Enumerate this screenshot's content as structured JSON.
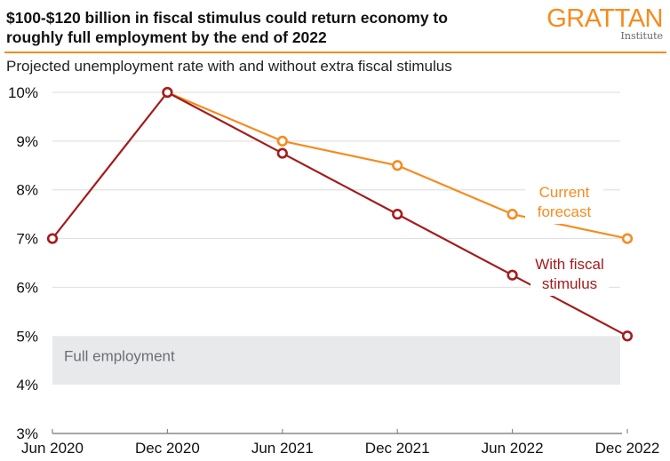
{
  "header": {
    "title_line1": "$100-$120 billion in fiscal stimulus could return economy to",
    "title_line2": "roughly full employment by the end of 2022",
    "subtitle": "Projected unemployment rate with and without extra fiscal stimulus",
    "logo_main": "GRATTAN",
    "logo_sub": "Institute"
  },
  "colors": {
    "accent": "#f68b1f",
    "current_forecast": "#f68b1f",
    "with_stimulus": "#a31c1c",
    "band": "#e8e9ea",
    "grid": "#e2e2e2",
    "band_label": "#6b6f75"
  },
  "chart_data": {
    "type": "line",
    "title": "$100-$120 billion in fiscal stimulus could return economy to roughly full employment by the end of 2022",
    "subtitle": "Projected unemployment rate with and without extra fiscal stimulus",
    "xlabel": "",
    "ylabel": "",
    "categories": [
      "Jun 2020",
      "Dec 2020",
      "Jun 2021",
      "Dec 2021",
      "Jun 2022",
      "Dec 2022"
    ],
    "ylim": [
      3,
      10
    ],
    "yticks": [
      3,
      4,
      5,
      6,
      7,
      8,
      9,
      10
    ],
    "ytick_labels": [
      "3%",
      "4%",
      "5%",
      "6%",
      "7%",
      "8%",
      "9%",
      "10%"
    ],
    "grid": true,
    "series": [
      {
        "name": "Current forecast",
        "label_lines": [
          "Current",
          "forecast"
        ],
        "color": "#f68b1f",
        "values": [
          null,
          10,
          9,
          8.5,
          7.5,
          7
        ]
      },
      {
        "name": "With fiscal stimulus",
        "label_lines": [
          "With fiscal",
          "stimulus"
        ],
        "color": "#a31c1c",
        "values": [
          7,
          10,
          8.75,
          7.5,
          6.25,
          5
        ]
      }
    ],
    "bands": [
      {
        "label": "Full employment",
        "from": 4,
        "to": 5
      }
    ],
    "legend": "inline-right"
  }
}
